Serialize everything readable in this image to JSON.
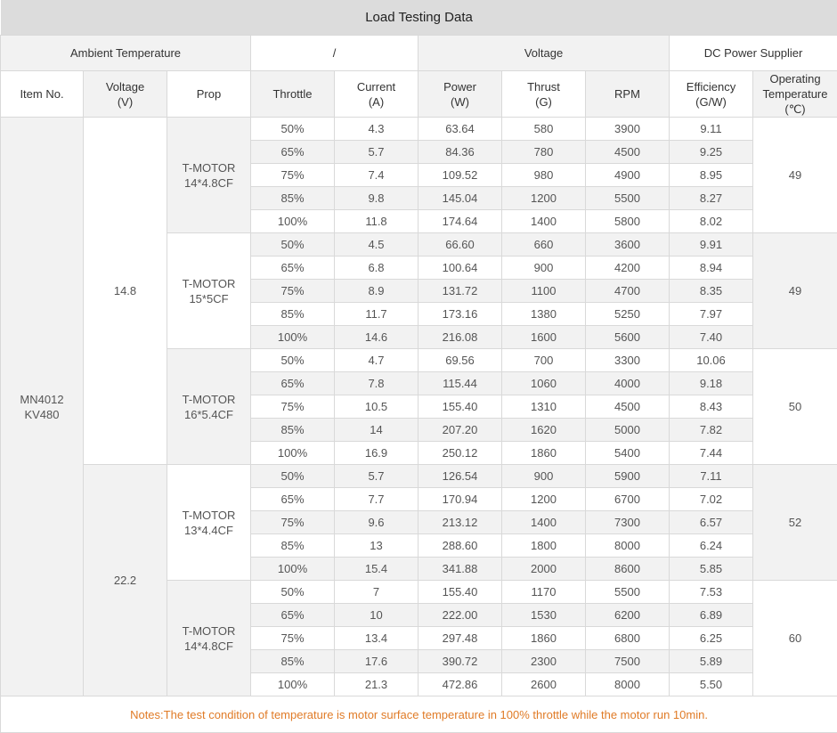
{
  "title": "Load Testing Data",
  "conditions": {
    "ambient_label": "Ambient Temperature",
    "ambient_value": "/",
    "voltage_label": "Voltage",
    "voltage_value": "DC Power Supplier"
  },
  "columns": {
    "item": "Item No.",
    "voltage_l1": "Voltage",
    "voltage_l2": "(V)",
    "prop": "Prop",
    "throttle": "Throttle",
    "current_l1": "Current",
    "current_l2": "(A)",
    "power_l1": "Power",
    "power_l2": "(W)",
    "thrust_l1": "Thrust",
    "thrust_l2": "(G)",
    "rpm": "RPM",
    "eff_l1": "Efficiency",
    "eff_l2": "(G/W)",
    "temp_l1": "Operating",
    "temp_l2": "Temperature",
    "temp_l3": "(℃)"
  },
  "item": {
    "line1": "MN4012",
    "line2": "KV480"
  },
  "voltages": [
    "14.8",
    "22.2"
  ],
  "groups": [
    {
      "prop_l1": "T-MOTOR",
      "prop_l2": "14*4.8CF",
      "temp": "49",
      "rows": [
        [
          "50%",
          "4.3",
          "63.64",
          "580",
          "3900",
          "9.11"
        ],
        [
          "65%",
          "5.7",
          "84.36",
          "780",
          "4500",
          "9.25"
        ],
        [
          "75%",
          "7.4",
          "109.52",
          "980",
          "4900",
          "8.95"
        ],
        [
          "85%",
          "9.8",
          "145.04",
          "1200",
          "5500",
          "8.27"
        ],
        [
          "100%",
          "11.8",
          "174.64",
          "1400",
          "5800",
          "8.02"
        ]
      ]
    },
    {
      "prop_l1": "T-MOTOR",
      "prop_l2": "15*5CF",
      "temp": "49",
      "rows": [
        [
          "50%",
          "4.5",
          "66.60",
          "660",
          "3600",
          "9.91"
        ],
        [
          "65%",
          "6.8",
          "100.64",
          "900",
          "4200",
          "8.94"
        ],
        [
          "75%",
          "8.9",
          "131.72",
          "1100",
          "4700",
          "8.35"
        ],
        [
          "85%",
          "11.7",
          "173.16",
          "1380",
          "5250",
          "7.97"
        ],
        [
          "100%",
          "14.6",
          "216.08",
          "1600",
          "5600",
          "7.40"
        ]
      ]
    },
    {
      "prop_l1": "T-MOTOR",
      "prop_l2": "16*5.4CF",
      "temp": "50",
      "rows": [
        [
          "50%",
          "4.7",
          "69.56",
          "700",
          "3300",
          "10.06"
        ],
        [
          "65%",
          "7.8",
          "115.44",
          "1060",
          "4000",
          "9.18"
        ],
        [
          "75%",
          "10.5",
          "155.40",
          "1310",
          "4500",
          "8.43"
        ],
        [
          "85%",
          "14",
          "207.20",
          "1620",
          "5000",
          "7.82"
        ],
        [
          "100%",
          "16.9",
          "250.12",
          "1860",
          "5400",
          "7.44"
        ]
      ]
    },
    {
      "prop_l1": "T-MOTOR",
      "prop_l2": "13*4.4CF",
      "temp": "52",
      "rows": [
        [
          "50%",
          "5.7",
          "126.54",
          "900",
          "5900",
          "7.11"
        ],
        [
          "65%",
          "7.7",
          "170.94",
          "1200",
          "6700",
          "7.02"
        ],
        [
          "75%",
          "9.6",
          "213.12",
          "1400",
          "7300",
          "6.57"
        ],
        [
          "85%",
          "13",
          "288.60",
          "1800",
          "8000",
          "6.24"
        ],
        [
          "100%",
          "15.4",
          "341.88",
          "2000",
          "8600",
          "5.85"
        ]
      ]
    },
    {
      "prop_l1": "T-MOTOR",
      "prop_l2": "14*4.8CF",
      "temp": "60",
      "rows": [
        [
          "50%",
          "7",
          "155.40",
          "1170",
          "5500",
          "7.53"
        ],
        [
          "65%",
          "10",
          "222.00",
          "1530",
          "6200",
          "6.89"
        ],
        [
          "75%",
          "13.4",
          "297.48",
          "1860",
          "6800",
          "6.25"
        ],
        [
          "85%",
          "17.6",
          "390.72",
          "2300",
          "7500",
          "5.89"
        ],
        [
          "100%",
          "21.3",
          "472.86",
          "2600",
          "8000",
          "5.50"
        ]
      ]
    }
  ],
  "notes": "Notes:The test condition of temperature is motor surface temperature in 100% throttle while the motor run 10min."
}
